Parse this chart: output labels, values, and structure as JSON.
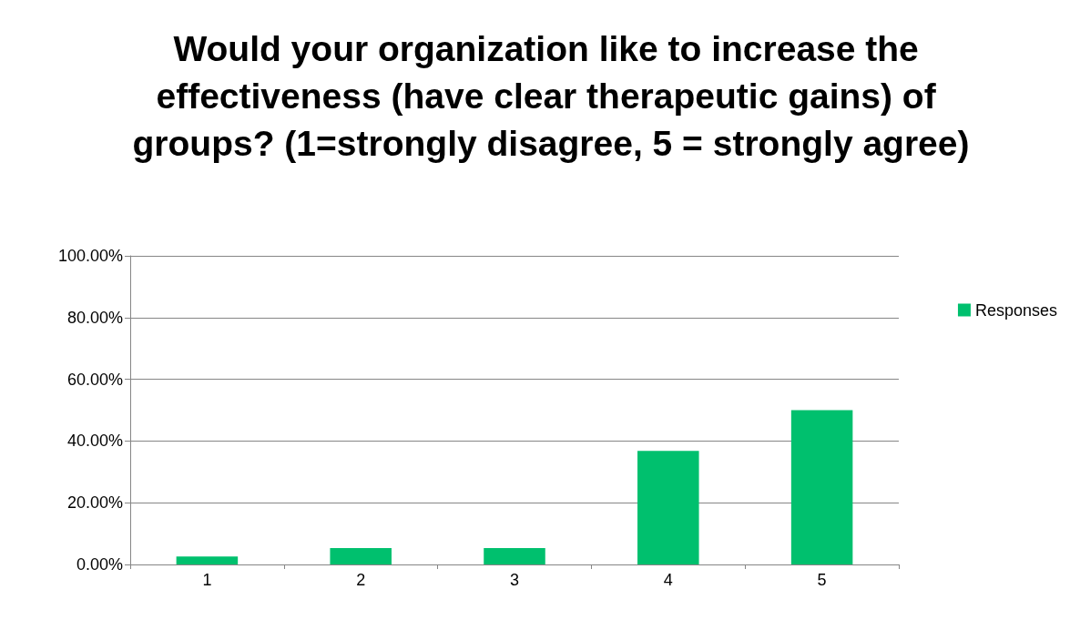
{
  "chart_data": {
    "type": "bar",
    "title": "Would your organization like to increase the effectiveness (have clear therapeutic gains) of groups? (1=strongly disagree, 5 = strongly agree)",
    "categories": [
      "1",
      "2",
      "3",
      "4",
      "5"
    ],
    "series": [
      {
        "name": "Responses",
        "color": "#00c06e",
        "values": [
          2.6,
          5.3,
          5.3,
          36.8,
          50
        ]
      }
    ],
    "ylim": [
      0,
      100
    ],
    "yticks": [
      {
        "value": 0,
        "label": "0.00%"
      },
      {
        "value": 20,
        "label": "20.00%"
      },
      {
        "value": 40,
        "label": "40.00%"
      },
      {
        "value": 60,
        "label": "60.00%"
      },
      {
        "value": 80,
        "label": "80.00%"
      },
      {
        "value": 100,
        "label": "100.00%"
      }
    ],
    "grid": "y",
    "legend": "right"
  }
}
